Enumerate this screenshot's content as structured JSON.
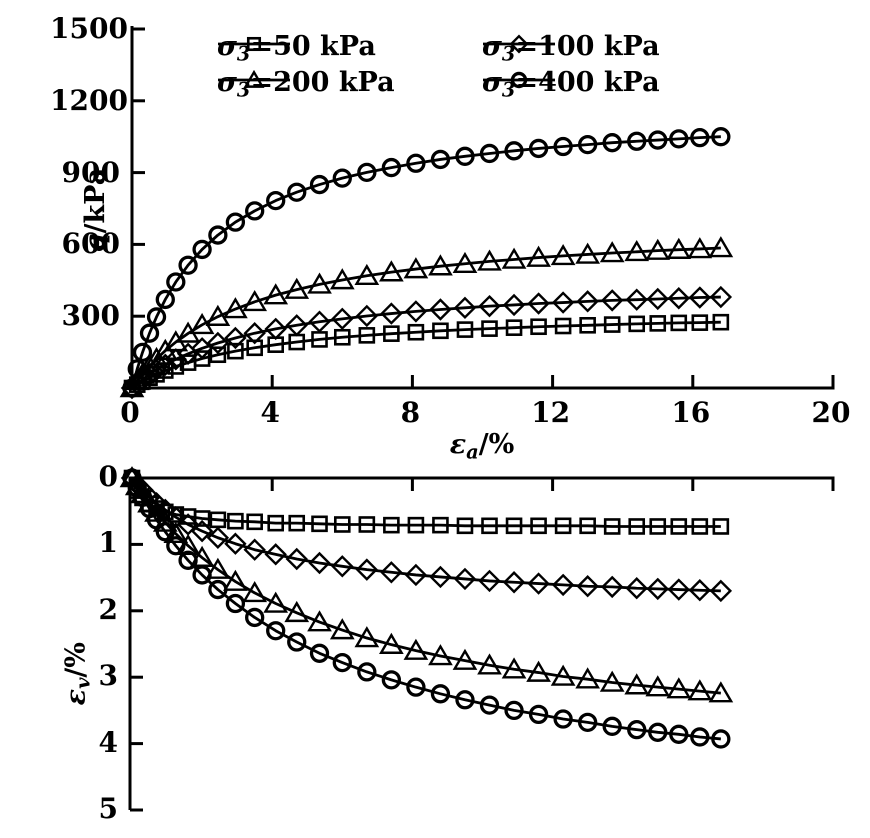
{
  "figure": {
    "description": "Triaxial test results: deviatoric stress and volumetric strain versus axial strain",
    "colors": {
      "ink": "#000000",
      "background": "#ffffff"
    }
  },
  "chart_data": [
    {
      "id": "stress-strain",
      "type": "line",
      "title": "",
      "xlabel": {
        "symbol": "ε",
        "subscript": "a",
        "unit": "/%"
      },
      "ylabel": {
        "symbol": "q",
        "subscript": "",
        "unit": "/kPa"
      },
      "xlim": [
        0,
        20
      ],
      "ylim": [
        0,
        1500
      ],
      "xtick_labels": [
        "0",
        "4",
        "8",
        "12",
        "16",
        "20"
      ],
      "xticks": [
        0,
        4,
        8,
        12,
        16,
        20
      ],
      "yticks": [
        300,
        600,
        900,
        1200,
        1500
      ],
      "ytick_labels": [
        "300",
        "600",
        "900",
        "1200",
        "1500"
      ],
      "grid": false,
      "legend_position": "top-inside",
      "legend": [
        {
          "symbol": "σ",
          "subscript": "3",
          "label": "=50 kPa",
          "marker": "square",
          "col": 0,
          "row": 0
        },
        {
          "symbol": "σ",
          "subscript": "3",
          "label": "=100 kPa",
          "marker": "diamond",
          "col": 1,
          "row": 0
        },
        {
          "symbol": "σ",
          "subscript": "3",
          "label": "=200 kPa",
          "marker": "triangle",
          "col": 0,
          "row": 1
        },
        {
          "symbol": "σ",
          "subscript": "3",
          "label": "=400 kPa",
          "marker": "circle",
          "col": 1,
          "row": 1
        }
      ],
      "x": [
        0,
        0.15,
        0.3,
        0.5,
        0.7,
        0.95,
        1.25,
        1.6,
        2,
        2.45,
        2.95,
        3.5,
        4.1,
        4.7,
        5.35,
        6,
        6.7,
        7.4,
        8.1,
        8.8,
        9.5,
        10.2,
        10.9,
        11.6,
        12.3,
        13,
        13.7,
        14.4,
        15,
        15.6,
        16.2,
        16.8
      ],
      "series": [
        {
          "name": "σ3=50 kPa",
          "marker": "square",
          "values": [
            0,
            14,
            27,
            43,
            57,
            73,
            90,
            106,
            123,
            139,
            154,
            168,
            181,
            192,
            203,
            212,
            220,
            227,
            233,
            239,
            244,
            248,
            252,
            256,
            259,
            262,
            265,
            268,
            270,
            272,
            273,
            275
          ]
        },
        {
          "name": "σ3=100 kPa",
          "marker": "diamond",
          "values": [
            0,
            19,
            36,
            57,
            76,
            97,
            120,
            143,
            166,
            188,
            209,
            229,
            247,
            262,
            277,
            289,
            301,
            311,
            320,
            328,
            335,
            342,
            347,
            353,
            357,
            362,
            366,
            369,
            372,
            375,
            378,
            380
          ]
        },
        {
          "name": "σ3=200 kPa",
          "marker": "triangle",
          "values": [
            0,
            30,
            58,
            92,
            122,
            156,
            192,
            228,
            264,
            298,
            330,
            360,
            388,
            411,
            433,
            451,
            469,
            484,
            497,
            509,
            519,
            529,
            537,
            545,
            552,
            558,
            564,
            569,
            574,
            578,
            581,
            585
          ]
        },
        {
          "name": "σ3=400 kPa",
          "marker": "circle",
          "values": [
            0,
            80,
            149,
            229,
            297,
            370,
            443,
            513,
            579,
            639,
            693,
            740,
            783,
            818,
            850,
            877,
            901,
            921,
            939,
            955,
            968,
            980,
            991,
            1001,
            1009,
            1017,
            1025,
            1031,
            1036,
            1041,
            1046,
            1050
          ]
        }
      ]
    },
    {
      "id": "volumetric-strain",
      "type": "line",
      "title": "",
      "xlabel": {
        "symbol": "",
        "subscript": "",
        "unit": ""
      },
      "ylabel": {
        "symbol": "ε",
        "subscript": "v",
        "unit": "/%"
      },
      "xlim": [
        0,
        20
      ],
      "ylim": [
        0,
        5
      ],
      "y_axis_inverted": true,
      "xticks": [
        4,
        8,
        12,
        16,
        20
      ],
      "xtick_labels": [],
      "yticks": [
        0,
        1,
        2,
        3,
        4,
        5
      ],
      "ytick_labels": [
        "0",
        "1",
        "2",
        "3",
        "4",
        "5"
      ],
      "grid": false,
      "x": [
        0,
        0.15,
        0.3,
        0.5,
        0.7,
        0.95,
        1.25,
        1.6,
        2,
        2.45,
        2.95,
        3.5,
        4.1,
        4.7,
        5.35,
        6,
        6.7,
        7.4,
        8.1,
        8.8,
        9.5,
        10.2,
        10.9,
        11.6,
        12.3,
        13,
        13.7,
        14.4,
        15,
        15.6,
        16.2,
        16.8
      ],
      "series": [
        {
          "name": "σ3=50 kPa",
          "marker": "square",
          "values": [
            0,
            0.19,
            0.3,
            0.39,
            0.46,
            0.51,
            0.55,
            0.58,
            0.61,
            0.63,
            0.65,
            0.66,
            0.68,
            0.68,
            0.69,
            0.7,
            0.7,
            0.71,
            0.71,
            0.71,
            0.72,
            0.72,
            0.72,
            0.72,
            0.72,
            0.72,
            0.73,
            0.73,
            0.73,
            0.73,
            0.73,
            0.73
          ]
        },
        {
          "name": "σ3=100 kPa",
          "marker": "diamond",
          "values": [
            0,
            0.1,
            0.18,
            0.29,
            0.38,
            0.48,
            0.59,
            0.7,
            0.8,
            0.9,
            0.99,
            1.08,
            1.15,
            1.22,
            1.28,
            1.33,
            1.38,
            1.42,
            1.46,
            1.49,
            1.52,
            1.55,
            1.57,
            1.59,
            1.61,
            1.63,
            1.64,
            1.66,
            1.67,
            1.68,
            1.69,
            1.7
          ]
        },
        {
          "name": "σ3=200 kPa",
          "marker": "triangle",
          "values": [
            0,
            0.12,
            0.24,
            0.38,
            0.52,
            0.67,
            0.84,
            1.02,
            1.2,
            1.38,
            1.56,
            1.73,
            1.89,
            2.03,
            2.17,
            2.29,
            2.41,
            2.51,
            2.6,
            2.68,
            2.75,
            2.82,
            2.88,
            2.93,
            2.99,
            3.03,
            3.08,
            3.12,
            3.15,
            3.18,
            3.21,
            3.24
          ]
        },
        {
          "name": "σ3=400 kPa",
          "marker": "circle",
          "values": [
            0,
            0.15,
            0.29,
            0.46,
            0.63,
            0.81,
            1.02,
            1.24,
            1.46,
            1.68,
            1.89,
            2.1,
            2.3,
            2.47,
            2.64,
            2.78,
            2.92,
            3.04,
            3.15,
            3.25,
            3.34,
            3.42,
            3.5,
            3.56,
            3.63,
            3.68,
            3.74,
            3.79,
            3.83,
            3.86,
            3.9,
            3.93
          ]
        }
      ]
    }
  ]
}
